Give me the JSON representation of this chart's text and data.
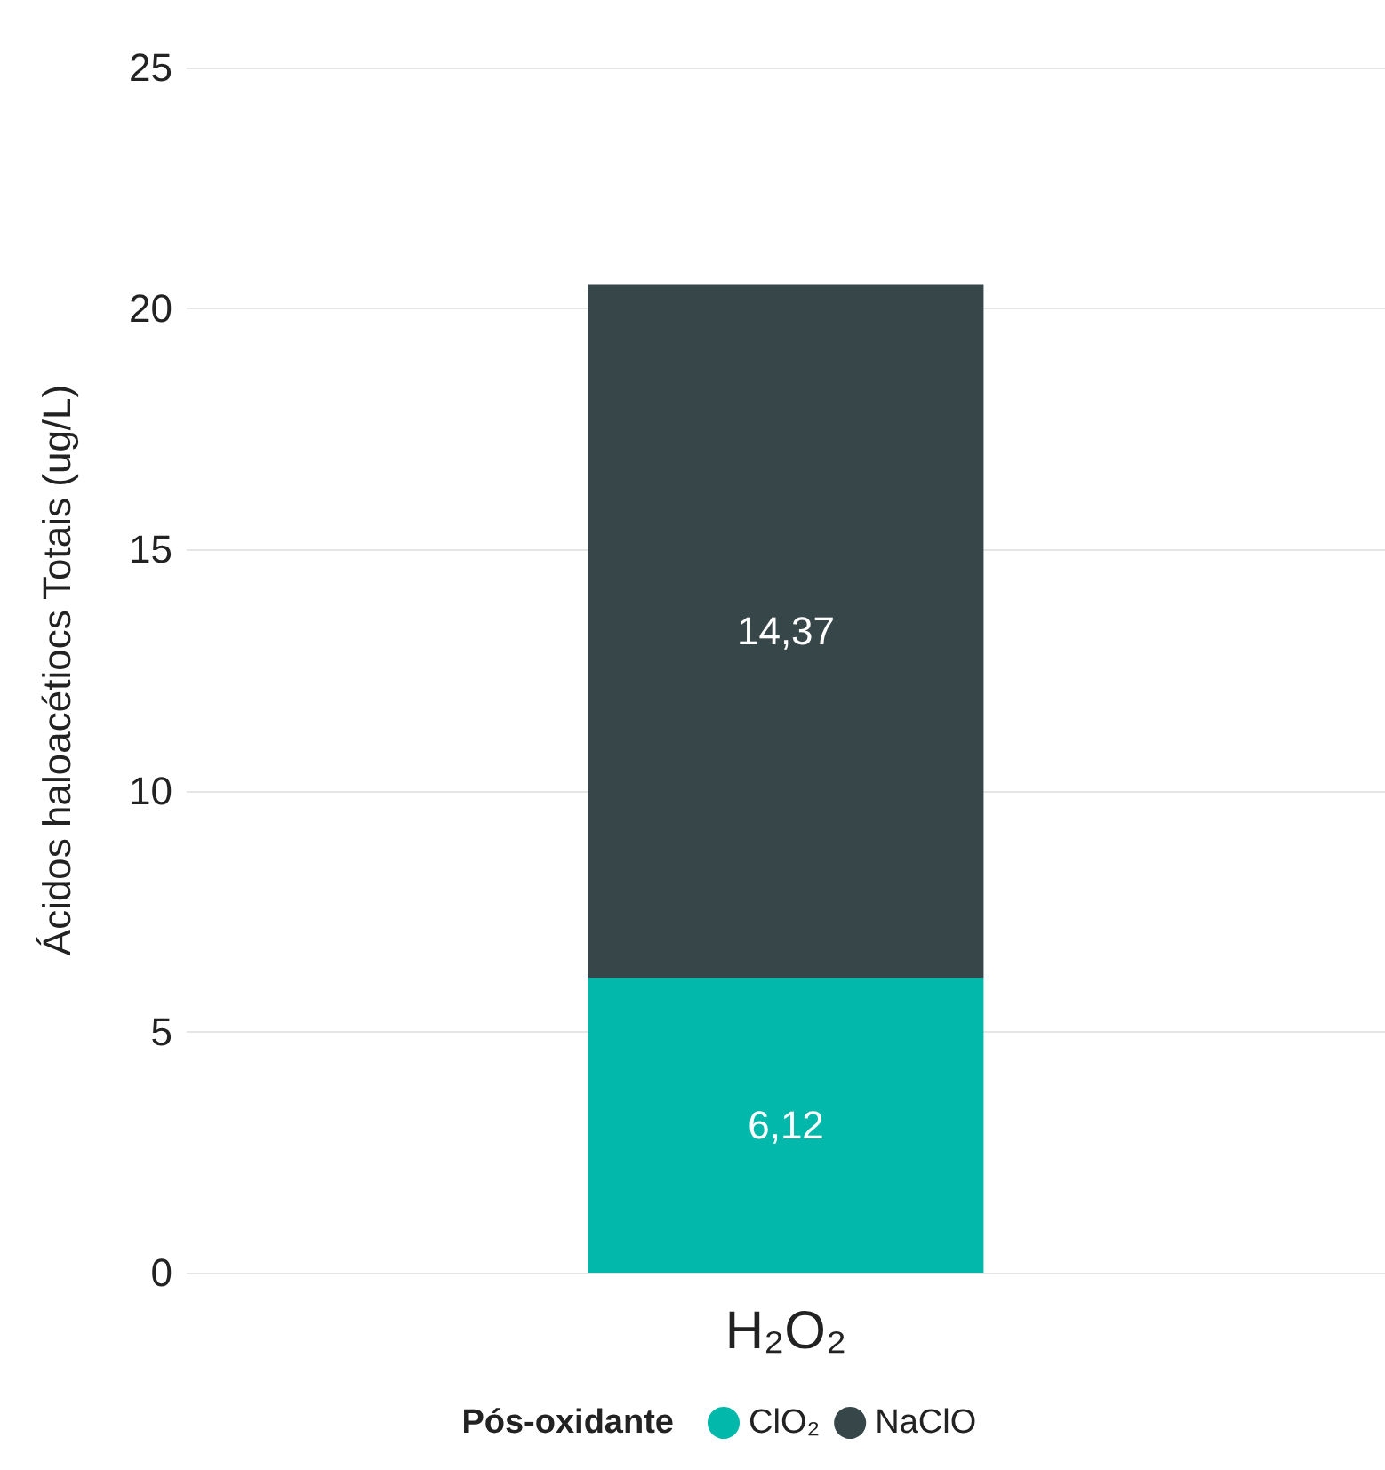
{
  "chart_data": {
    "type": "bar",
    "stacked": true,
    "ylabel": "Ácidos haloacétiocs Totais (ug/L)",
    "legend_title": "Pós-oxidante",
    "legend": "bottom",
    "categories": [
      "H₂O₂"
    ],
    "series": [
      {
        "name": "ClO₂",
        "color": "#01b8aa",
        "values": [
          6.12
        ],
        "value_labels": [
          "6,12"
        ]
      },
      {
        "name": "NaClO",
        "color": "#374649",
        "values": [
          14.37
        ],
        "value_labels": [
          "14,37"
        ]
      }
    ],
    "ylim": [
      0,
      25
    ],
    "yticks": [
      0,
      5,
      10,
      15,
      20,
      25
    ],
    "grid": "y"
  }
}
